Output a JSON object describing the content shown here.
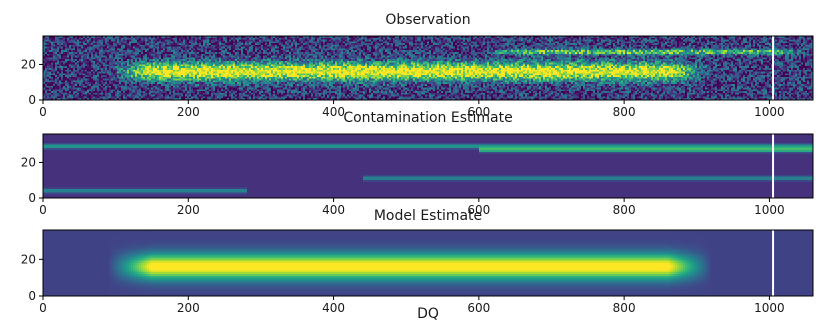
{
  "footer_label": "DQ",
  "colormap": {
    "name": "viridis",
    "stops": [
      "#440154",
      "#482878",
      "#3e4989",
      "#31688e",
      "#26828e",
      "#1f9e89",
      "#35b779",
      "#6ece58",
      "#b5de2b",
      "#fde725"
    ]
  },
  "chart_data": [
    {
      "type": "heatmap",
      "title": "Observation",
      "xlim": [
        0,
        1060
      ],
      "ylim": [
        0,
        36
      ],
      "xticks": [
        0,
        200,
        400,
        600,
        800,
        1000
      ],
      "yticks": [
        0,
        20
      ],
      "columns": 1060,
      "rows": 36,
      "trace": {
        "x_start": 90,
        "x_end": 920,
        "center_row": 16,
        "width_rows": 5,
        "peak": 0.85
      },
      "secondary_trace": {
        "x_start": 600,
        "x_end": 1060,
        "center_row": 27,
        "width_rows": 1.5,
        "peak": 0.55
      },
      "bad_column_x": 1005,
      "noise": "high",
      "background": 0.18
    },
    {
      "type": "heatmap",
      "title": "Contamination Estimate",
      "xlim": [
        0,
        1060
      ],
      "ylim": [
        0,
        36
      ],
      "xticks": [
        0,
        200,
        400,
        600,
        800,
        1000
      ],
      "yticks": [
        0,
        20
      ],
      "columns": 1060,
      "rows": 36,
      "streaks": [
        {
          "center_row": 29,
          "x_start": 0,
          "x_end": 1060,
          "peak": 0.45,
          "width_rows": 1.2
        },
        {
          "center_row": 27,
          "x_start": 600,
          "x_end": 1060,
          "peak": 0.55,
          "width_rows": 1.2
        },
        {
          "center_row": 11,
          "x_start": 440,
          "x_end": 1060,
          "peak": 0.35,
          "width_rows": 1.2
        },
        {
          "center_row": 4,
          "x_start": 0,
          "x_end": 280,
          "peak": 0.35,
          "width_rows": 1.2
        }
      ],
      "bad_column_x": 1005,
      "noise": "none",
      "background": 0.14
    },
    {
      "type": "heatmap",
      "title": "Model Estimate",
      "xlim": [
        0,
        1060
      ],
      "ylim": [
        0,
        36
      ],
      "xticks": [
        0,
        200,
        400,
        600,
        800,
        1000
      ],
      "yticks": [
        0,
        20
      ],
      "columns": 1060,
      "rows": 36,
      "trace": {
        "x_start": 90,
        "x_end": 920,
        "center_row": 16,
        "width_rows": 7,
        "peak": 0.85
      },
      "bad_column_x": 1005,
      "noise": "none",
      "background": 0.2
    }
  ]
}
